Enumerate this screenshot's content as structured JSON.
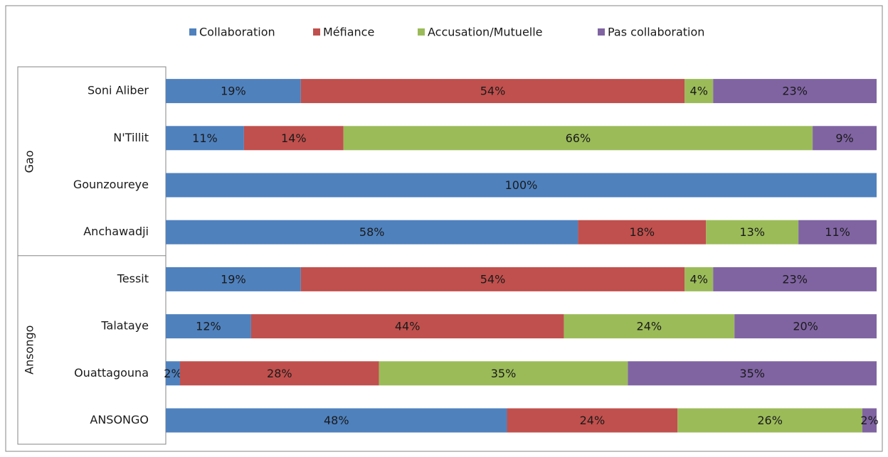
{
  "chart_data": {
    "type": "stacked_bar_horizontal",
    "groups": [
      {
        "label": "Gao",
        "categories": [
          "Soni Aliber",
          "N'Tillit",
          "Gounzoureye",
          "Anchawadji"
        ]
      },
      {
        "label": "Ansongo",
        "categories": [
          "Tessit",
          "Talataye",
          "Ouattagouna",
          "ANSONGO"
        ]
      }
    ],
    "xlim": [
      0,
      100
    ],
    "legend": "top",
    "series": [
      {
        "name": "Collaboration",
        "color": "#4f81bd",
        "values": [
          19,
          11,
          100,
          58,
          19,
          12,
          2,
          48
        ],
        "value_labels": [
          "19%",
          "11%",
          "100%",
          "58%",
          "19%",
          "12%",
          "2%",
          "48%"
        ]
      },
      {
        "name": "Méfiance",
        "color": "#c0504d",
        "values": [
          54,
          14,
          null,
          18,
          54,
          44,
          28,
          24
        ],
        "value_labels": [
          "54%",
          "14%",
          null,
          "18%",
          "54%",
          "44%",
          "28%",
          "24%"
        ]
      },
      {
        "name": "Accusation/Mutuelle",
        "color": "#9bbb59",
        "values": [
          4,
          66,
          null,
          13,
          4,
          24,
          35,
          26
        ],
        "value_labels": [
          "4%",
          "66%",
          null,
          "13%",
          "4%",
          "24%",
          "35%",
          "26%"
        ]
      },
      {
        "name": "Pas collaboration",
        "color": "#8064a2",
        "values": [
          23,
          9,
          null,
          11,
          23,
          20,
          35,
          2
        ],
        "value_labels": [
          "23%",
          "9%",
          null,
          "11%",
          "23%",
          "20%",
          "35%",
          "2%"
        ]
      }
    ]
  }
}
